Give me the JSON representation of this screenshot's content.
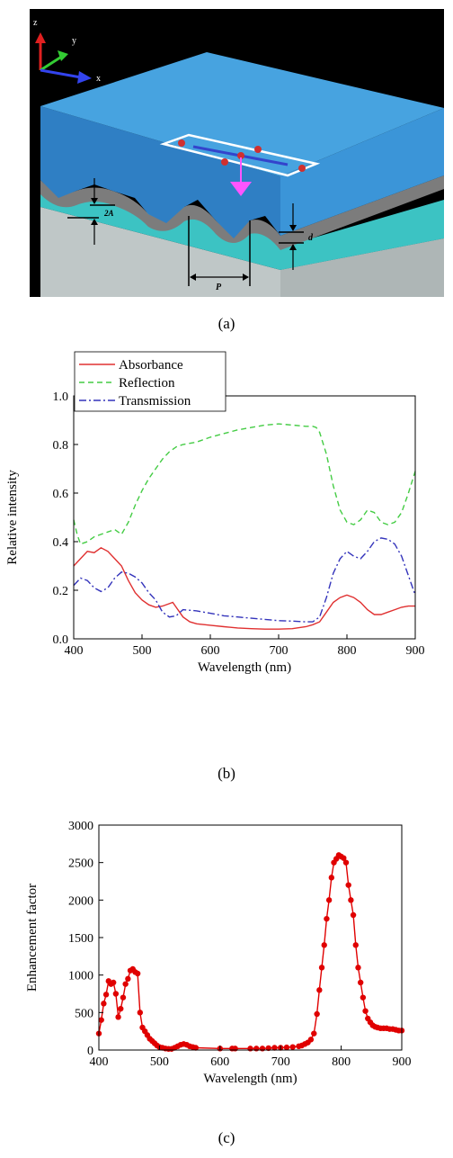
{
  "figure": {
    "panel_a": {
      "caption": "(a)",
      "axis_labels": {
        "z": "z",
        "y": "y",
        "x": "x"
      },
      "dimension_labels": {
        "amplitude": "2A",
        "thickness": "d",
        "period": "P"
      },
      "colors": {
        "background": "#000000",
        "superstrate": "#3f93d6",
        "metal_film": "#808080",
        "spacer": "#3cc3c3",
        "substrate": "#bfc7c7"
      }
    },
    "panel_b": {
      "caption": "(b)"
    },
    "panel_c": {
      "caption": "(c)"
    }
  },
  "chart_data": [
    {
      "id": "b",
      "type": "line",
      "title": "",
      "xlabel": "Wavelength (nm)",
      "ylabel": "Relative intensity",
      "xlim": [
        400,
        900
      ],
      "ylim": [
        0.0,
        1.0
      ],
      "xticks": [
        400,
        500,
        600,
        700,
        800,
        900
      ],
      "yticks": [
        0.0,
        0.2,
        0.4,
        0.6,
        0.8,
        1.0
      ],
      "xtick_labels": [
        "400",
        "500",
        "600",
        "700",
        "800",
        "900"
      ],
      "ytick_labels": [
        "0.0",
        "0.2",
        "0.4",
        "0.6",
        "0.8",
        "1.0"
      ],
      "legend": "top-left",
      "grid": false,
      "series": [
        {
          "name": "Absorbance",
          "color": "#e03030",
          "dash": "solid",
          "x": [
            400,
            410,
            420,
            430,
            440,
            450,
            460,
            470,
            480,
            490,
            500,
            510,
            520,
            530,
            540,
            545,
            550,
            560,
            570,
            580,
            600,
            620,
            640,
            660,
            680,
            700,
            720,
            740,
            750,
            760,
            770,
            780,
            790,
            800,
            810,
            820,
            830,
            840,
            850,
            860,
            870,
            880,
            890,
            900
          ],
          "y": [
            0.3,
            0.33,
            0.36,
            0.355,
            0.375,
            0.36,
            0.33,
            0.3,
            0.24,
            0.19,
            0.16,
            0.14,
            0.13,
            0.135,
            0.145,
            0.15,
            0.13,
            0.09,
            0.07,
            0.062,
            0.056,
            0.05,
            0.045,
            0.042,
            0.04,
            0.04,
            0.042,
            0.05,
            0.058,
            0.07,
            0.11,
            0.15,
            0.17,
            0.18,
            0.17,
            0.15,
            0.12,
            0.1,
            0.1,
            0.11,
            0.12,
            0.13,
            0.135,
            0.135
          ]
        },
        {
          "name": "Reflection",
          "color": "#44cc44",
          "dash": "dashed",
          "x": [
            400,
            405,
            410,
            420,
            430,
            440,
            450,
            460,
            470,
            480,
            490,
            500,
            510,
            520,
            530,
            540,
            550,
            560,
            580,
            600,
            620,
            640,
            660,
            680,
            700,
            720,
            740,
            750,
            755,
            760,
            770,
            780,
            790,
            800,
            810,
            820,
            830,
            840,
            850,
            860,
            870,
            880,
            890,
            900
          ],
          "y": [
            0.49,
            0.43,
            0.39,
            0.4,
            0.42,
            0.43,
            0.44,
            0.45,
            0.43,
            0.48,
            0.55,
            0.61,
            0.66,
            0.7,
            0.74,
            0.77,
            0.79,
            0.8,
            0.81,
            0.83,
            0.845,
            0.86,
            0.87,
            0.88,
            0.885,
            0.88,
            0.875,
            0.875,
            0.87,
            0.85,
            0.76,
            0.63,
            0.53,
            0.48,
            0.47,
            0.49,
            0.53,
            0.52,
            0.48,
            0.47,
            0.48,
            0.52,
            0.6,
            0.69
          ]
        },
        {
          "name": "Transmission",
          "color": "#3333bb",
          "dash": "dashdot",
          "x": [
            400,
            410,
            420,
            430,
            440,
            450,
            460,
            470,
            480,
            490,
            500,
            510,
            520,
            530,
            540,
            550,
            560,
            580,
            600,
            620,
            640,
            660,
            680,
            700,
            720,
            740,
            750,
            760,
            770,
            780,
            790,
            800,
            810,
            820,
            830,
            840,
            850,
            860,
            870,
            880,
            890,
            900
          ],
          "y": [
            0.22,
            0.25,
            0.24,
            0.21,
            0.195,
            0.21,
            0.25,
            0.275,
            0.27,
            0.255,
            0.23,
            0.19,
            0.16,
            0.11,
            0.09,
            0.095,
            0.12,
            0.115,
            0.105,
            0.095,
            0.09,
            0.085,
            0.08,
            0.075,
            0.073,
            0.07,
            0.07,
            0.09,
            0.17,
            0.27,
            0.33,
            0.36,
            0.34,
            0.33,
            0.36,
            0.4,
            0.415,
            0.41,
            0.39,
            0.34,
            0.26,
            0.18
          ]
        }
      ]
    },
    {
      "id": "c",
      "type": "line",
      "title": "",
      "xlabel": "Wavelength (nm)",
      "ylabel": "Enhancement factor",
      "xlim": [
        400,
        900
      ],
      "ylim": [
        0,
        3000
      ],
      "xticks": [
        400,
        500,
        600,
        700,
        800,
        900
      ],
      "yticks": [
        0,
        500,
        1000,
        1500,
        2000,
        2500,
        3000
      ],
      "xtick_labels": [
        "400",
        "500",
        "600",
        "700",
        "800",
        "900"
      ],
      "ytick_labels": [
        "0",
        "500",
        "1000",
        "1500",
        "2000",
        "2500",
        "3000"
      ],
      "grid": false,
      "series": [
        {
          "color": "#e00000",
          "marker": "circle",
          "x": [
            400,
            404,
            408,
            412,
            416,
            420,
            424,
            428,
            432,
            436,
            440,
            444,
            448,
            452,
            456,
            460,
            464,
            468,
            472,
            476,
            480,
            484,
            488,
            492,
            496,
            500,
            505,
            510,
            515,
            520,
            525,
            530,
            535,
            540,
            545,
            550,
            555,
            560,
            600,
            620,
            625,
            650,
            660,
            670,
            680,
            690,
            700,
            710,
            720,
            730,
            735,
            740,
            745,
            750,
            755,
            760,
            764,
            768,
            772,
            776,
            780,
            784,
            788,
            792,
            796,
            800,
            804,
            808,
            812,
            816,
            820,
            824,
            828,
            832,
            836,
            840,
            844,
            848,
            852,
            856,
            860,
            865,
            870,
            875,
            880,
            885,
            890,
            895,
            900
          ],
          "y": [
            220,
            400,
            620,
            740,
            920,
            880,
            900,
            750,
            440,
            550,
            700,
            880,
            950,
            1060,
            1080,
            1040,
            1020,
            500,
            300,
            250,
            200,
            150,
            120,
            90,
            60,
            40,
            30,
            20,
            15,
            15,
            30,
            50,
            70,
            80,
            70,
            50,
            40,
            30,
            20,
            20,
            20,
            20,
            20,
            20,
            25,
            30,
            30,
            35,
            40,
            50,
            60,
            80,
            100,
            140,
            220,
            480,
            800,
            1100,
            1400,
            1750,
            2000,
            2300,
            2500,
            2550,
            2600,
            2580,
            2560,
            2500,
            2200,
            2000,
            1800,
            1400,
            1100,
            900,
            700,
            520,
            420,
            370,
            330,
            310,
            300,
            290,
            290,
            290,
            280,
            280,
            270,
            260,
            260
          ]
        }
      ]
    }
  ]
}
